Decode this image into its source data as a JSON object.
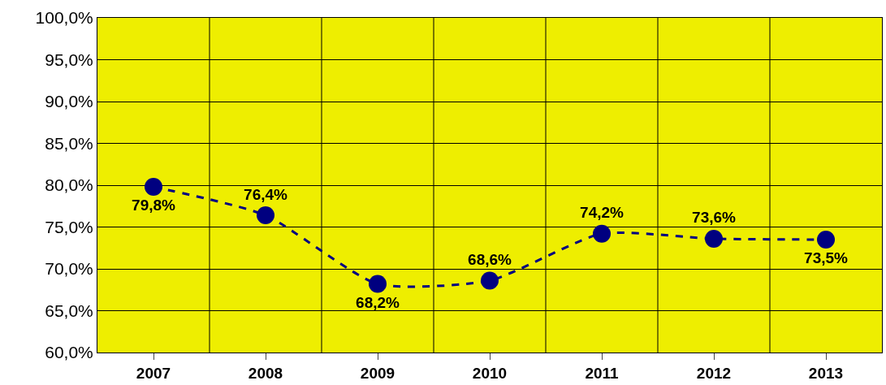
{
  "chart_data": {
    "type": "line",
    "categories": [
      "2007",
      "2008",
      "2009",
      "2010",
      "2011",
      "2012",
      "2013"
    ],
    "series": [
      {
        "color": "#000080",
        "values": [
          79.8,
          76.4,
          68.2,
          68.6,
          74.2,
          73.6,
          73.5
        ]
      }
    ],
    "value_labels": [
      "79,8%",
      "76,4%",
      "68,2%",
      "68,6%",
      "74,2%",
      "73,6%",
      "73,5%"
    ],
    "ylim": [
      60,
      100
    ],
    "yticks": [
      {
        "value": 60,
        "label": "60,0%"
      },
      {
        "value": 65,
        "label": "65,0%"
      },
      {
        "value": 70,
        "label": "70,0%"
      },
      {
        "value": 75,
        "label": "75,0%"
      },
      {
        "value": 80,
        "label": "80,0%"
      },
      {
        "value": 85,
        "label": "85,0%"
      },
      {
        "value": 90,
        "label": "90,0%"
      },
      {
        "value": 95,
        "label": "95,0%"
      },
      {
        "value": 100,
        "label": "100,0%"
      }
    ],
    "grid": true,
    "legend": false,
    "marker": "circle",
    "line_style": "dashed"
  }
}
